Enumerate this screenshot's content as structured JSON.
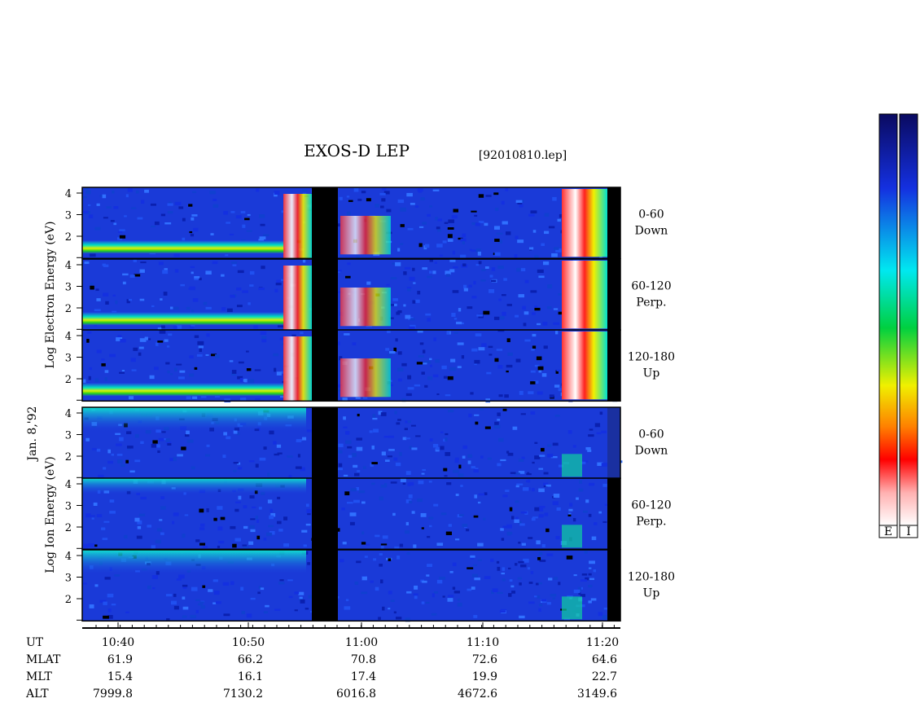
{
  "title": "EXOS-D LEP",
  "file_name": "[92010810.lep]",
  "date": "Jan. 8,'92",
  "electron_axis_label": "Log   Electron   Energy (eV)",
  "ion_axis_label": "Log   Ion   Energy (eV)",
  "energy_ticks": [
    "4",
    "3",
    "2"
  ],
  "panels": [
    {
      "label": "0-60",
      "direction": "Down"
    },
    {
      "label": "60-120",
      "direction": "Perp."
    },
    {
      "label": "120-180",
      "direction": "Up"
    },
    {
      "label": "0-60",
      "direction": "Down"
    },
    {
      "label": "60-120",
      "direction": "Perp."
    },
    {
      "label": "120-180",
      "direction": "Up"
    }
  ],
  "orbit_table": [
    {
      "label": "UT",
      "values": [
        "10:40",
        "10:50",
        "11:00",
        "11:10",
        "11:20"
      ]
    },
    {
      "label": "MLAT",
      "values": [
        "61.9",
        "66.2",
        "70.8",
        "72.6",
        "64.6"
      ]
    },
    {
      "label": "MLT",
      "values": [
        "15.4",
        "16.1",
        "17.4",
        "19.9",
        "22.7"
      ]
    },
    {
      "label": "ALT",
      "values": [
        "7999.8",
        "7130.2",
        "6016.8",
        "4672.6",
        "3149.6"
      ]
    }
  ],
  "color_bar_labels": [
    "E",
    "I"
  ]
}
